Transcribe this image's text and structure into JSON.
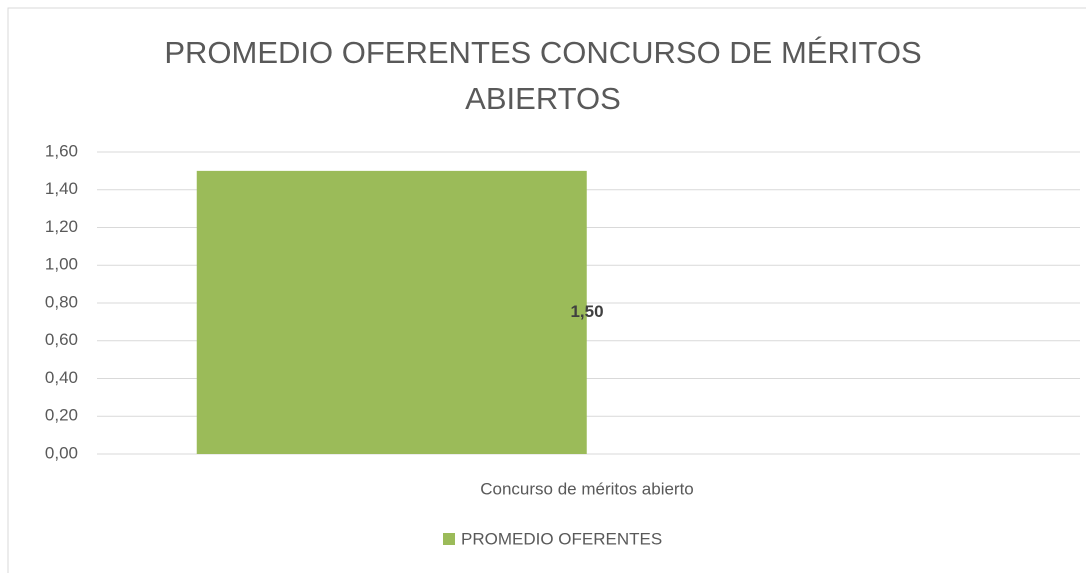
{
  "chart_data": {
    "type": "bar",
    "title": "PROMEDIO OFERENTES CONCURSO DE MÉRITOS ABIERTOS",
    "categories": [
      "Concurso de méritos abierto"
    ],
    "series": [
      {
        "name": "PROMEDIO OFERENTES",
        "color": "#9bbb59",
        "values": [
          1.5
        ],
        "value_labels": [
          "1,50"
        ]
      }
    ],
    "ylim": [
      0,
      1.6
    ],
    "yticks": [
      {
        "value": 0,
        "label": "0,00"
      },
      {
        "value": 0.2,
        "label": "0,20"
      },
      {
        "value": 0.4,
        "label": "0,40"
      },
      {
        "value": 0.6,
        "label": "0,60"
      },
      {
        "value": 0.8,
        "label": "0,80"
      },
      {
        "value": 1.0,
        "label": "1,00"
      },
      {
        "value": 1.2,
        "label": "1,20"
      },
      {
        "value": 1.4,
        "label": "1,40"
      },
      {
        "value": 1.6,
        "label": "1,60"
      }
    ],
    "grid": true,
    "legend": "bottom"
  }
}
